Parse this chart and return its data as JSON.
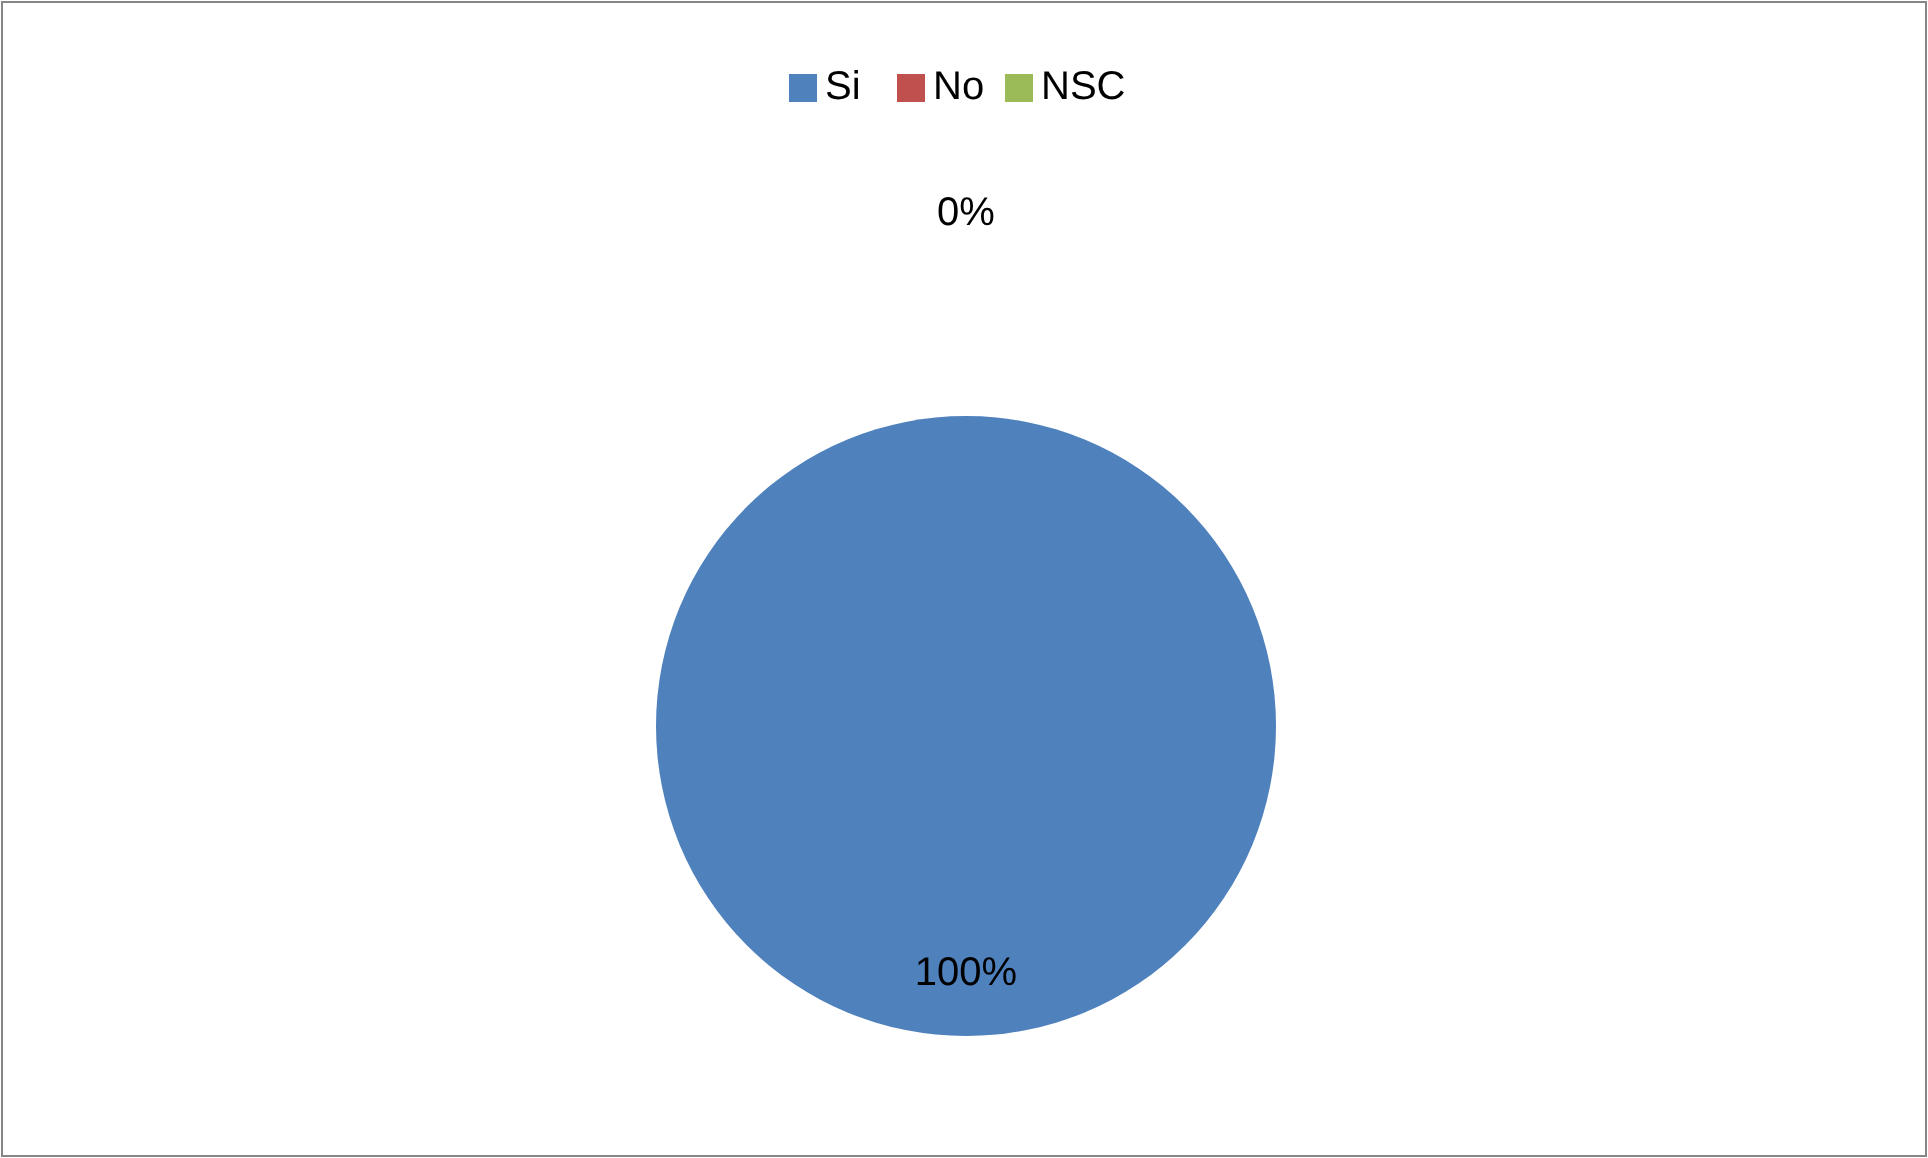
{
  "chart_data": {
    "type": "pie",
    "categories": [
      "Si",
      "No",
      "NSC"
    ],
    "values": [
      100,
      0,
      0
    ],
    "colors": [
      "#4f81bd",
      "#c0504d",
      "#9bbb59"
    ],
    "value_labels": [
      "100%",
      "0%",
      null
    ],
    "legend": "top"
  }
}
